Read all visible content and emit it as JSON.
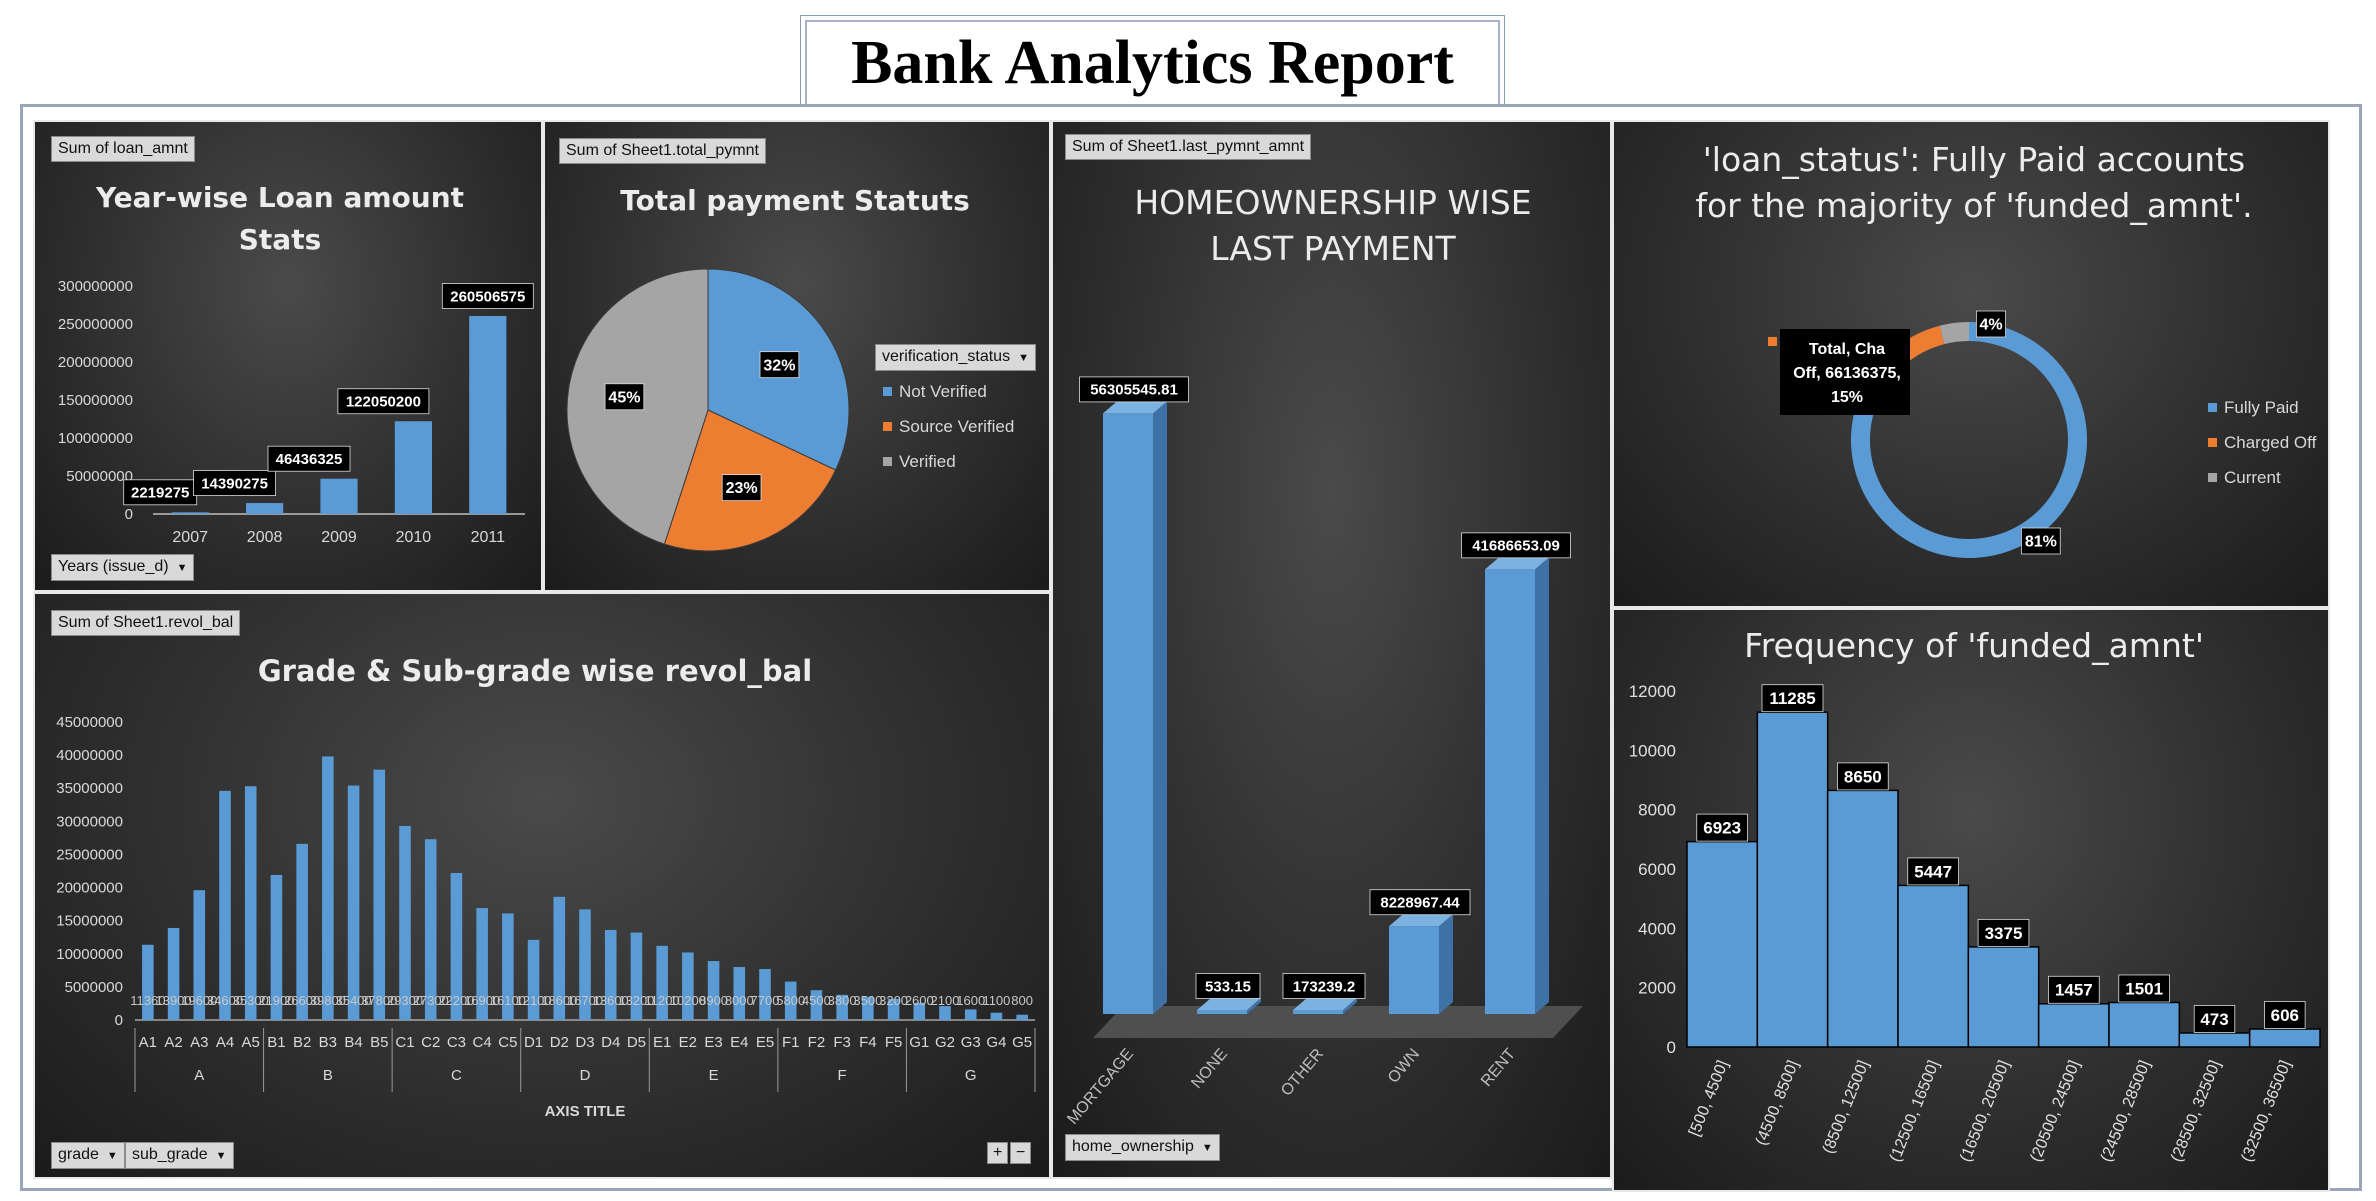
{
  "report_title": "Bank Analytics Report",
  "colors": {
    "blue": "#5b9bd5",
    "orange": "#ed7d31",
    "gray": "#a5a5a5"
  },
  "panels": {
    "year_loan": {
      "value_field": "Sum of loan_amnt",
      "filter_field": "Years (issue_d)"
    },
    "payment_status": {
      "value_field": "Sum of Sheet1.total_pymnt",
      "legend_field": "verification_status"
    },
    "homeownership": {
      "value_field": "Sum of Sheet1.last_pymnt_amnt",
      "filter_field": "home_ownership"
    },
    "loan_status": {
      "legend": [
        "Fully Paid",
        "Charged Off",
        "Current"
      ],
      "callout": [
        "Total, Cha",
        "Off, 66136375,",
        "15%"
      ]
    },
    "grade_revol": {
      "value_field": "Sum of Sheet1.revol_bal",
      "filter_fields": [
        "grade",
        "sub_grade"
      ],
      "expand_buttons": [
        "+",
        "−"
      ]
    },
    "frequency": {}
  },
  "chart_data": [
    {
      "type": "bar",
      "title": "Year-wise Loan amount Stats",
      "categories": [
        "2007",
        "2008",
        "2009",
        "2010",
        "2011"
      ],
      "values": [
        2219275,
        14390275,
        46436325,
        122050200,
        260506575
      ],
      "data_labels": [
        "2219275",
        "14390275",
        "46436325",
        "122050200",
        "260506575"
      ],
      "ylim": [
        0,
        300000000
      ],
      "yticks": [
        "0",
        "50000000",
        "100000000",
        "150000000",
        "200000000",
        "250000000",
        "300000000"
      ]
    },
    {
      "type": "pie",
      "title": "Total payment Statuts",
      "categories": [
        "Not Verified",
        "Source Verified",
        "Verified"
      ],
      "values": [
        32,
        23,
        45
      ],
      "data_labels": [
        "32%",
        "23%",
        "45%"
      ]
    },
    {
      "type": "bar",
      "title": "HOMEOWNERSHIP WISE LAST PAYMENT",
      "categories": [
        "MORTGAGE",
        "NONE",
        "OTHER",
        "OWN",
        "RENT"
      ],
      "values": [
        56305545.81,
        533.15,
        173239.2,
        8228967.44,
        41686653.09
      ],
      "data_labels": [
        "56305545.81",
        "533.15",
        "173239.2",
        "8228967.44",
        "41686653.09"
      ]
    },
    {
      "type": "pie",
      "title": "'loan_status': Fully Paid accounts for the majority of 'funded_amnt'.",
      "categories": [
        "Fully Paid",
        "Charged Off",
        "Current"
      ],
      "values": [
        81,
        15,
        4
      ],
      "data_labels": [
        "81%",
        "15%",
        "4%"
      ]
    },
    {
      "type": "bar",
      "title": "Grade & Sub-grade wise revol_bal",
      "xlabel": "AXIS TITLE",
      "groups": [
        "A",
        "B",
        "C",
        "D",
        "E",
        "F",
        "G"
      ],
      "categories": [
        "A1",
        "A2",
        "A3",
        "A4",
        "A5",
        "B1",
        "B2",
        "B3",
        "B4",
        "B5",
        "C1",
        "C2",
        "C3",
        "C4",
        "C5",
        "D1",
        "D2",
        "D3",
        "D4",
        "D5",
        "E1",
        "E2",
        "E3",
        "E4",
        "E5",
        "F1",
        "F2",
        "F3",
        "F4",
        "F5",
        "G1",
        "G2",
        "G3",
        "G4",
        "G5"
      ],
      "values": [
        11360000,
        13900000,
        19600000,
        34600000,
        35300000,
        21900000,
        26600000,
        39800000,
        35400000,
        37800000,
        29300000,
        27300000,
        22200000,
        16900000,
        16100000,
        12100000,
        18600000,
        16700000,
        13600000,
        13200000,
        11200000,
        10200000,
        8900000,
        8000000,
        7700000,
        5800000,
        4500000,
        3800000,
        3500000,
        3200000,
        2600000,
        2100000,
        1600000,
        1100000,
        800000
      ],
      "ylim": [
        0,
        45000000
      ],
      "yticks": [
        "0",
        "5000000",
        "10000000",
        "15000000",
        "20000000",
        "25000000",
        "30000000",
        "35000000",
        "40000000",
        "45000000"
      ]
    },
    {
      "type": "bar",
      "title": "Frequency of 'funded_amnt'",
      "categories": [
        "[500, 4500]",
        "(4500, 8500]",
        "(8500, 12500]",
        "(12500, 16500]",
        "(16500, 20500]",
        "(20500, 24500]",
        "(24500, 28500]",
        "(28500, 32500]",
        "(32500, 36500]"
      ],
      "values": [
        6923,
        11285,
        8650,
        5447,
        3375,
        1457,
        1501,
        473,
        606
      ],
      "data_labels": [
        "6923",
        "11285",
        "8650",
        "5447",
        "3375",
        "1457",
        "1501",
        "473",
        "606"
      ],
      "ylim": [
        0,
        12000
      ],
      "yticks": [
        "0",
        "2000",
        "4000",
        "6000",
        "8000",
        "10000",
        "12000"
      ]
    }
  ]
}
